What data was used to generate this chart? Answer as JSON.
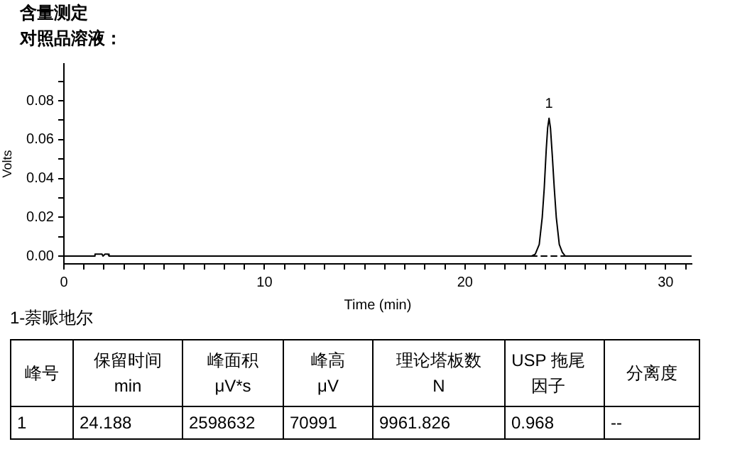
{
  "chart_data": {
    "type": "line",
    "title": "含量测定",
    "subtitle": "对照品溶液：",
    "xlabel": "Time (min)",
    "ylabel": "Volts",
    "xlim": [
      0,
      31.3
    ],
    "ylim": [
      -0.004,
      0.099
    ],
    "xticks": [
      0,
      {
        "value": 1,
        "label": null
      },
      {
        "value": 2,
        "label": null
      },
      {
        "value": 3,
        "label": null
      },
      {
        "value": 4,
        "label": null
      },
      {
        "value": 5,
        "label": null
      },
      {
        "value": 6,
        "label": null
      },
      {
        "value": 7,
        "label": null
      },
      {
        "value": 8,
        "label": null
      },
      {
        "value": 9,
        "label": null
      },
      10,
      {
        "value": 11,
        "label": null
      },
      {
        "value": 12,
        "label": null
      },
      {
        "value": 13,
        "label": null
      },
      {
        "value": 14,
        "label": null
      },
      {
        "value": 15,
        "label": null
      },
      {
        "value": 16,
        "label": null
      },
      {
        "value": 17,
        "label": null
      },
      {
        "value": 18,
        "label": null
      },
      {
        "value": 19,
        "label": null
      },
      20,
      {
        "value": 21,
        "label": null
      },
      {
        "value": 22,
        "label": null
      },
      {
        "value": 23,
        "label": null
      },
      {
        "value": 24,
        "label": null
      },
      {
        "value": 25,
        "label": null
      },
      {
        "value": 26,
        "label": null
      },
      {
        "value": 27,
        "label": null
      },
      {
        "value": 28,
        "label": null
      },
      {
        "value": 29,
        "label": null
      },
      30,
      {
        "value": 31,
        "label": null
      }
    ],
    "yticks": [
      {
        "value": 0,
        "label": "0.00"
      },
      {
        "value": 0.01,
        "label": null
      },
      {
        "value": 0.02,
        "label": "0.02"
      },
      {
        "value": 0.03,
        "label": null
      },
      {
        "value": 0.04,
        "label": "0.04"
      },
      {
        "value": 0.05,
        "label": null
      },
      {
        "value": 0.06,
        "label": "0.06"
      },
      {
        "value": 0.07,
        "label": null
      },
      {
        "value": 0.08,
        "label": "0.08"
      },
      {
        "value": 0.09,
        "label": null
      }
    ],
    "grid": false,
    "legend": false,
    "marker": "none",
    "line_style": "solid",
    "series": [
      {
        "color": "#000000",
        "x": [
          0,
          1.5,
          1.55,
          1.9,
          1.95,
          2.05,
          2.2,
          2.25,
          23.3,
          23.5,
          23.7,
          23.85,
          23.95,
          24.05,
          24.12,
          24.19,
          24.26,
          24.35,
          24.45,
          24.55,
          24.7,
          24.85,
          25.0,
          31.3
        ],
        "values": [
          0,
          0,
          0.001,
          0.001,
          0,
          0.001,
          0.001,
          0,
          0,
          0.001,
          0.006,
          0.02,
          0.035,
          0.055,
          0.066,
          0.071,
          0.066,
          0.052,
          0.035,
          0.02,
          0.006,
          0.002,
          0,
          0
        ]
      },
      {
        "color": "#000000",
        "line_style": "dashed",
        "x": [
          23.3,
          25.0
        ],
        "values": [
          0,
          0
        ]
      }
    ],
    "annotations": [
      {
        "text": "1",
        "x": 24.188,
        "y": 0.071
      },
      "1-萘哌地尔",
      "峰号",
      "保留时间\nmin",
      "峰面积\nμV*s",
      "峰高\nμV",
      "理论塔板数\nN",
      "USP 拖尾因子",
      "分离度",
      "1",
      "24.188",
      "2598632",
      "70991",
      "9961.826",
      "0.968",
      "--"
    ]
  }
}
